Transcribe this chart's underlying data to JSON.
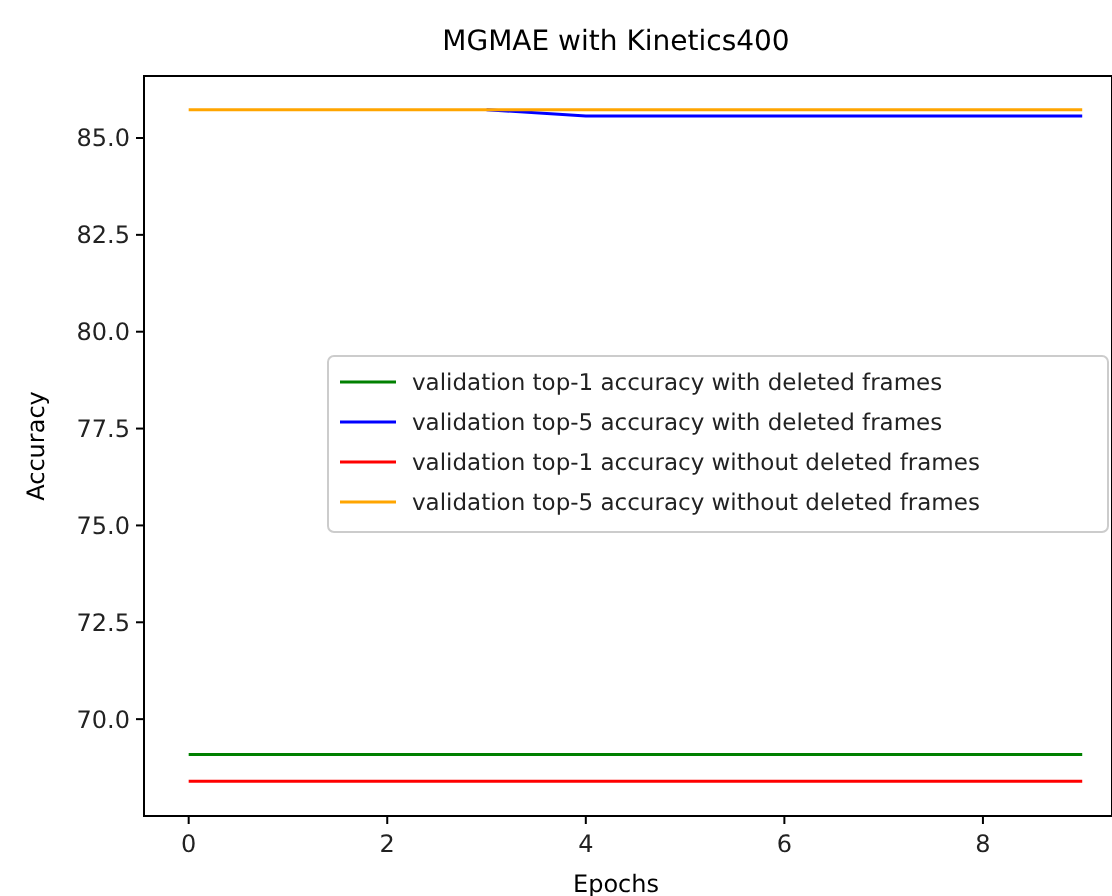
{
  "chart_data": {
    "type": "line",
    "title": "MGMAE with Kinetics400",
    "xlabel": "Epochs",
    "ylabel": "Accuracy",
    "x": [
      0,
      1,
      2,
      3,
      4,
      5,
      6,
      7,
      8,
      9
    ],
    "series": [
      {
        "name": "validation top-1 accuracy with deleted frames",
        "color": "#008000",
        "values": [
          69.09,
          69.09,
          69.09,
          69.09,
          69.09,
          69.09,
          69.09,
          69.09,
          69.09,
          69.09
        ]
      },
      {
        "name": "validation top-5 accuracy with deleted frames",
        "color": "#0000ff",
        "values": [
          null,
          null,
          null,
          85.73,
          85.57,
          85.57,
          85.57,
          85.57,
          85.57,
          85.57
        ]
      },
      {
        "name": "validation top-1 accuracy without deleted frames",
        "color": "#ff0000",
        "values": [
          68.4,
          68.4,
          68.4,
          68.4,
          68.4,
          68.4,
          68.4,
          68.4,
          68.4,
          68.4
        ]
      },
      {
        "name": "validation top-5 accuracy without deleted frames",
        "color": "#ffa500",
        "values": [
          85.73,
          85.73,
          85.73,
          85.73,
          85.73,
          85.73,
          85.73,
          85.73,
          85.73,
          85.73
        ]
      }
    ],
    "xlim": [
      -0.45,
      9.3
    ],
    "ylim": [
      67.5,
      86.6
    ],
    "xticks": [
      0,
      2,
      4,
      6,
      8
    ],
    "yticks": [
      {
        "value": 70,
        "label": "70.0"
      },
      {
        "value": 72.5,
        "label": "72.5"
      },
      {
        "value": 75,
        "label": "75.0"
      },
      {
        "value": 77.5,
        "label": "77.5"
      },
      {
        "value": 80,
        "label": "80.0"
      },
      {
        "value": 82.5,
        "label": "82.5"
      },
      {
        "value": 85,
        "label": "85.0"
      }
    ],
    "legend": "right",
    "grid": false,
    "marker": "none",
    "line_style": "solid"
  }
}
